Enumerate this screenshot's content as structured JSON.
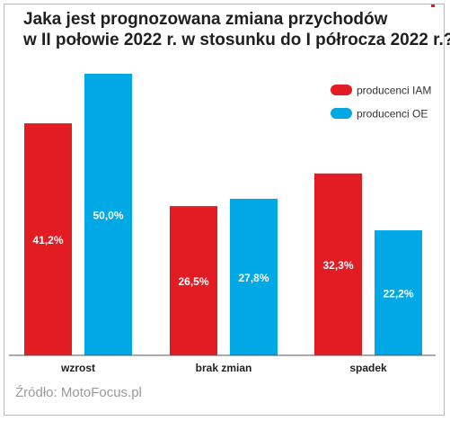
{
  "chart_data": {
    "type": "bar",
    "title_lines": [
      "Jaka jest prognozowana zmiana przychodów",
      "w II połowie 2022 r. w stosunku do I półrocza 2022 r.?"
    ],
    "categories": [
      "wzrost",
      "brak zmian",
      "spadek"
    ],
    "series": [
      {
        "name": "producenci IAM",
        "values": [
          41.2,
          26.5,
          32.3
        ],
        "labels": [
          "41,2%",
          "26,5%",
          "32,3%"
        ],
        "color": "#e31b23"
      },
      {
        "name": "producenci OE",
        "values": [
          50.0,
          27.8,
          22.2
        ],
        "labels": [
          "50,0%",
          "27,8%",
          "22,2%"
        ],
        "color": "#00a8e6"
      }
    ],
    "ylim": [
      0,
      50
    ],
    "grid": false,
    "legend_position": "top-right"
  },
  "source": "Źródło: MotoFocus.pl"
}
